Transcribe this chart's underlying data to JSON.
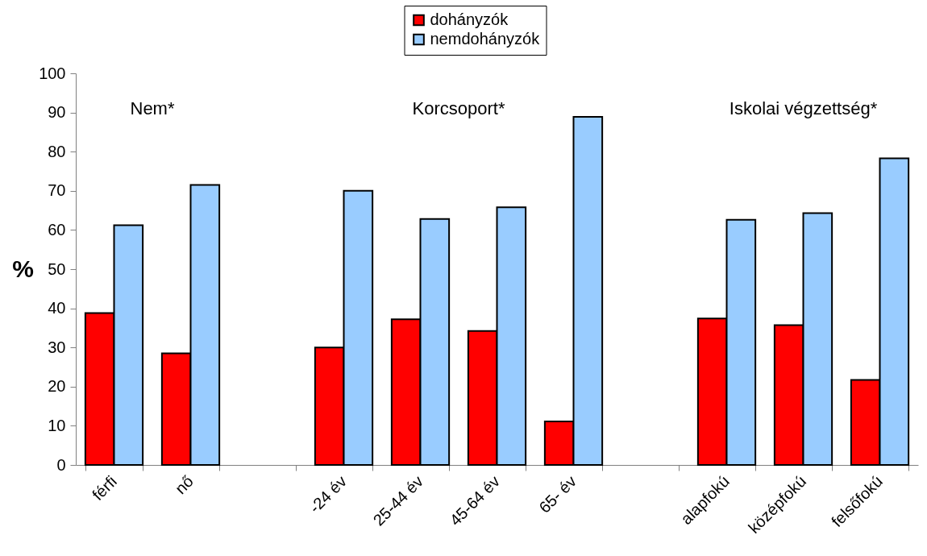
{
  "chart_data": {
    "type": "bar",
    "ylabel": "%",
    "categories": [
      "férfi",
      "nő",
      null,
      "-24 év",
      "25-44 év",
      "45-64 év",
      "65- év",
      null,
      "alapfokú",
      "középfokú",
      "felsőfokú"
    ],
    "series": [
      {
        "name": "dohányzók",
        "color": "#ff0000",
        "values": [
          38.8,
          28.5,
          null,
          30.0,
          37.2,
          34.2,
          11.1,
          null,
          37.4,
          35.7,
          21.7
        ]
      },
      {
        "name": "nemdohányzók",
        "color": "#99ccff",
        "values": [
          61.2,
          71.5,
          null,
          70.0,
          62.8,
          65.8,
          88.9,
          null,
          62.6,
          64.3,
          78.3
        ]
      }
    ],
    "ylim": [
      0,
      100
    ],
    "yticks": [
      0,
      10,
      20,
      30,
      40,
      50,
      60,
      70,
      80,
      90,
      100
    ],
    "annotations": [
      "Nem*",
      "Korcsoport*",
      "Iskolai végzettség*"
    ],
    "legend": "top"
  }
}
